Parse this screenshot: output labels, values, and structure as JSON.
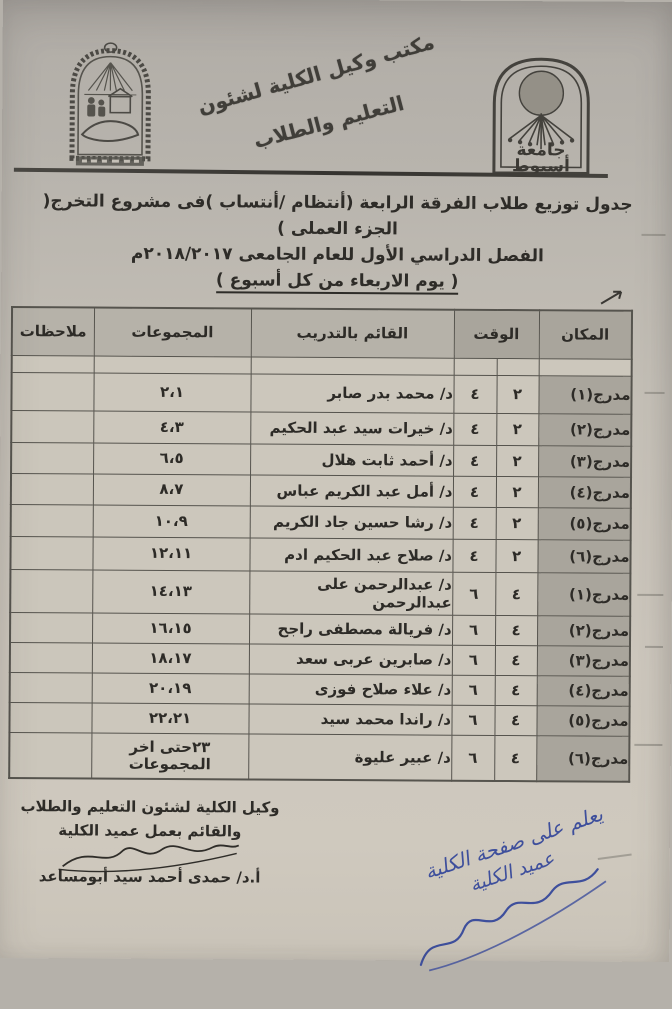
{
  "stamp": {
    "line1": "مكتب وكيل الكلية لشئون",
    "line2": "التعليم والطلاب"
  },
  "seals": {
    "university_line1": "جامعة",
    "university_line2": "أسيوط"
  },
  "title": {
    "line1": "جدول توزيع طلاب الفرقة الرابعة (أنتظام /أنتساب )فى مشروع التخرج( الجزء العملى )",
    "line2": "الفصل الدراسي الأول للعام الجامعى ٢٠١٨/٢٠١٧م",
    "line3": "( يوم الاربعاء من كل أسبوع )"
  },
  "table": {
    "headers": {
      "place": "المكان",
      "time": "الوقت",
      "trainer": "القائم بالتدريب",
      "groups": "المجموعات",
      "notes": "ملاحظات"
    },
    "rows": [
      {
        "place": "مدرج(١)",
        "time_a": "٢",
        "time_b": "٤",
        "trainer": "د/ محمد بدر صابر",
        "groups": "٢،١",
        "notes": ""
      },
      {
        "place": "مدرج(٢)",
        "time_a": "٢",
        "time_b": "٤",
        "trainer": "د/ خيرات سيد عبد الحكيم",
        "groups": "٤،٣",
        "notes": ""
      },
      {
        "place": "مدرج(٣)",
        "time_a": "٢",
        "time_b": "٤",
        "trainer": "د/ أحمد ثابت هلال",
        "groups": "٦،٥",
        "notes": ""
      },
      {
        "place": "مدرج(٤)",
        "time_a": "٢",
        "time_b": "٤",
        "trainer": "د/ أمل عبد الكريم عباس",
        "groups": "٨،٧",
        "notes": ""
      },
      {
        "place": "مدرج(٥)",
        "time_a": "٢",
        "time_b": "٤",
        "trainer": "د/ رشا حسين جاد الكريم",
        "groups": "١٠،٩",
        "notes": ""
      },
      {
        "place": "مدرج(٦)",
        "time_a": "٢",
        "time_b": "٤",
        "trainer": "د/ صلاح عبد الحكيم ادم",
        "groups": "١٢،١١",
        "notes": ""
      },
      {
        "place": "مدرج(١)",
        "time_a": "٤",
        "time_b": "٦",
        "trainer": "د/ عبدالرحمن على عبدالرحمن",
        "groups": "١٤،١٣",
        "notes": ""
      },
      {
        "place": "مدرج(٢)",
        "time_a": "٤",
        "time_b": "٦",
        "trainer": "د/ فريالة مصطفى راجح",
        "groups": "١٦،١٥",
        "notes": ""
      },
      {
        "place": "مدرج(٣)",
        "time_a": "٤",
        "time_b": "٦",
        "trainer": "د/ صابرين عربى سعد",
        "groups": "١٨،١٧",
        "notes": ""
      },
      {
        "place": "مدرج(٤)",
        "time_a": "٤",
        "time_b": "٦",
        "trainer": "د/ علاء صلاح فوزى",
        "groups": "٢٠،١٩",
        "notes": ""
      },
      {
        "place": "مدرج(٥)",
        "time_a": "٤",
        "time_b": "٦",
        "trainer": "د/ راندا محمد سيد",
        "groups": "٢٢،٢١",
        "notes": ""
      },
      {
        "place": "مدرج(٦)",
        "time_a": "٤",
        "time_b": "٦",
        "trainer": "د/ عبير عليوة",
        "groups": "٢٣حتى اخر المجموعات",
        "notes": ""
      }
    ]
  },
  "footer": {
    "line1": "وكيل الكلية لشئون التعليم والطلاب",
    "line2": "والقائم بعمل عميد الكلية",
    "name": "أ.د/ حمدى أحمد سيد أبومساعد"
  },
  "handwriting": {
    "line1": "يعلم على صفحة الكلية",
    "line2": "عميد الكلية"
  },
  "colors": {
    "paper": "#c5c0b7",
    "cell_shade": "#a9a59c",
    "ink": "#2e2c28",
    "pen_blue": "#3e4f9c"
  }
}
